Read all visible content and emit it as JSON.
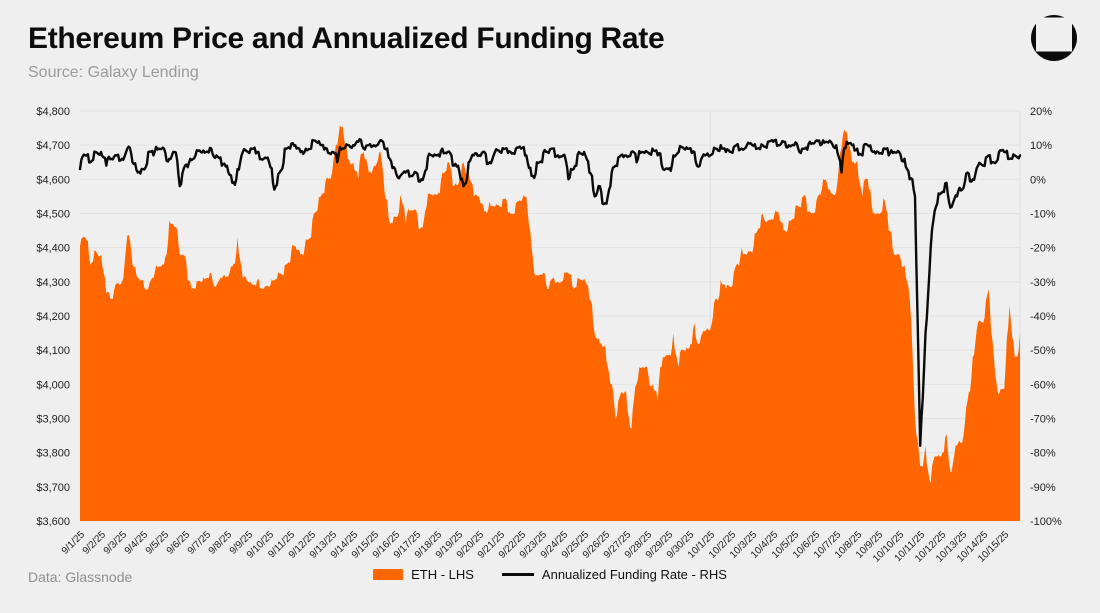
{
  "header": {
    "title": "Ethereum Price and Annualized Funding Rate",
    "subtitle": "Source: Galaxy Lending"
  },
  "footer": {
    "data_source": "Data: Glassnode"
  },
  "legend": [
    {
      "label": "ETH - LHS",
      "color": "#FF6600",
      "type": "area"
    },
    {
      "label": "Annualized Funding Rate - RHS",
      "color": "#0B0B0B",
      "type": "line"
    }
  ],
  "colors": {
    "background": "#EFEFEF",
    "grid": "#E2E2E2",
    "month_gridline": "#DEDEDE",
    "axis_text": "#1F1F1F",
    "title_text": "#0D0D0D",
    "muted_text": "#9A9A9A",
    "eth_area": "#FF6600",
    "funding_line": "#0B0B0B"
  },
  "chart_data": {
    "type": "area+line",
    "title": "Ethereum Price and Annualized Funding Rate",
    "legend_position": "bottom",
    "points_per_day": 4,
    "x_labels": [
      "9/1/25",
      "9/2/25",
      "9/3/25",
      "9/4/25",
      "9/5/25",
      "9/6/25",
      "9/7/25",
      "9/8/25",
      "9/9/25",
      "9/10/25",
      "9/11/25",
      "9/12/25",
      "9/13/25",
      "9/14/25",
      "9/15/25",
      "9/16/25",
      "9/17/25",
      "9/18/25",
      "9/19/25",
      "9/20/25",
      "9/21/25",
      "9/22/25",
      "9/23/25",
      "9/24/25",
      "9/25/25",
      "9/26/25",
      "9/27/25",
      "9/28/25",
      "9/29/25",
      "9/30/25",
      "10/1/25",
      "10/2/25",
      "10/3/25",
      "10/4/25",
      "10/5/25",
      "10/6/25",
      "10/7/25",
      "10/8/25",
      "10/9/25",
      "10/10/25",
      "10/11/25",
      "10/12/25",
      "10/13/25",
      "10/14/25",
      "10/15/25"
    ],
    "left_axis": {
      "min": 3600,
      "max": 4800,
      "ticks": [
        "$4,800",
        "$4,700",
        "$4,600",
        "$4,500",
        "$4,400",
        "$4,300",
        "$4,200",
        "$4,100",
        "$4,000",
        "$3,900",
        "$3,800",
        "$3,700",
        "$3,600"
      ]
    },
    "right_axis": {
      "min": -100,
      "max": 20,
      "ticks": [
        "20%",
        "10%",
        "0%",
        "-10%",
        "-20%",
        "-30%",
        "-40%",
        "-50%",
        "-60%",
        "-70%",
        "-80%",
        "-90%",
        "-100%"
      ]
    },
    "grid": {
      "horizontal": true,
      "month_line_at": "10/1/25"
    },
    "series": [
      {
        "name": "ETH - LHS",
        "axis": "left",
        "type": "area",
        "color": "#FF6600",
        "values": [
          4405,
          4430,
          4350,
          4390,
          4380,
          4265,
          4250,
          4295,
          4300,
          4435,
          4350,
          4310,
          4305,
          4280,
          4310,
          4345,
          4350,
          4480,
          4460,
          4380,
          4375,
          4300,
          4280,
          4300,
          4310,
          4325,
          4290,
          4310,
          4315,
          4345,
          4430,
          4310,
          4300,
          4290,
          4310,
          4280,
          4285,
          4305,
          4325,
          4350,
          4355,
          4405,
          4380,
          4425,
          4430,
          4505,
          4555,
          4605,
          4620,
          4700,
          4755,
          4660,
          4650,
          4600,
          4680,
          4620,
          4640,
          4680,
          4560,
          4470,
          4490,
          4555,
          4470,
          4510,
          4510,
          4460,
          4520,
          4555,
          4555,
          4620,
          4650,
          4580,
          4585,
          4650,
          4620,
          4550,
          4550,
          4505,
          4535,
          4520,
          4520,
          4545,
          4500,
          4530,
          4535,
          4550,
          4400,
          4320,
          4320,
          4280,
          4310,
          4300,
          4305,
          4325,
          4280,
          4310,
          4310,
          4250,
          4150,
          4120,
          4115,
          4000,
          3900,
          3975,
          3980,
          3870,
          4000,
          4050,
          4050,
          4000,
          3950,
          4080,
          4085,
          4150,
          4050,
          4100,
          4105,
          4180,
          4120,
          4155,
          4160,
          4250,
          4305,
          4280,
          4285,
          4350,
          4400,
          4380,
          4385,
          4450,
          4500,
          4480,
          4480,
          4505,
          4450,
          4480,
          4485,
          4520,
          4555,
          4505,
          4505,
          4555,
          4600,
          4560,
          4565,
          4690,
          4740,
          4650,
          4655,
          4550,
          4600,
          4500,
          4500,
          4545,
          4450,
          4380,
          4380,
          4350,
          4250,
          3900,
          3760,
          3820,
          3710,
          3790,
          3790,
          3855,
          3745,
          3820,
          3830,
          3950,
          4080,
          4180,
          4180,
          4280,
          4090,
          3970,
          3985,
          4230,
          4080,
          4150
        ]
      },
      {
        "name": "Annualized Funding Rate - RHS",
        "axis": "right",
        "type": "line",
        "color": "#0B0B0B",
        "values": [
          3,
          7,
          5,
          8,
          8,
          4,
          6,
          7,
          6,
          9,
          5,
          2,
          3,
          8,
          7,
          9,
          9,
          6,
          8,
          -2,
          4,
          6,
          7,
          8,
          8,
          9,
          7,
          4,
          4,
          -1,
          3,
          8,
          8,
          9,
          8,
          6,
          5,
          -3,
          2,
          9,
          9,
          10,
          8,
          9,
          9,
          11,
          10,
          9,
          8,
          5,
          9,
          10,
          10,
          11,
          9,
          10,
          10,
          11,
          9,
          6,
          3,
          1,
          2,
          1,
          2,
          0,
          3,
          7,
          7,
          9,
          8,
          4,
          4,
          -2,
          5,
          7,
          7,
          8,
          5,
          8,
          8,
          9,
          8,
          9,
          9,
          7,
          1,
          5,
          5,
          8,
          9,
          7,
          7,
          0,
          3,
          8,
          8,
          2,
          -5,
          -2,
          -7,
          -2,
          4,
          7,
          7,
          8,
          5,
          8,
          8,
          9,
          7,
          3,
          3,
          7,
          8,
          9,
          9,
          8,
          4,
          7,
          7,
          9,
          10,
          8,
          8,
          10,
          9,
          10,
          10,
          9,
          10,
          11,
          11,
          10,
          11,
          10,
          10,
          8,
          9,
          11,
          11,
          10,
          11,
          11,
          10,
          2,
          11,
          10,
          9,
          7,
          10,
          8,
          8,
          9,
          7,
          8,
          8,
          6,
          0,
          -5,
          -78,
          -45,
          -20,
          -8,
          -4,
          -1,
          -8,
          -5,
          -3,
          2,
          0,
          4,
          4,
          7,
          5,
          8,
          8,
          6,
          7,
          7
        ]
      }
    ]
  }
}
